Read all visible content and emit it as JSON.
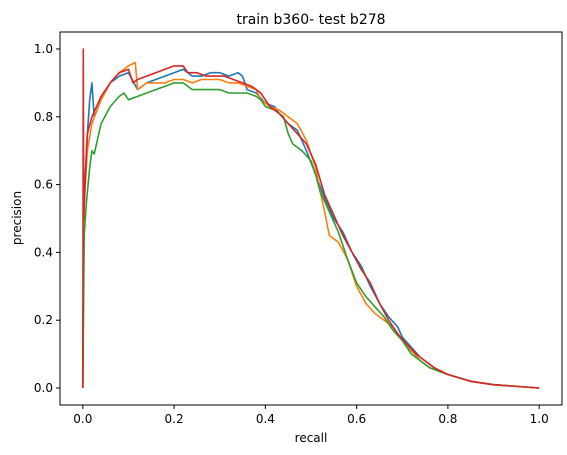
{
  "chart_data": {
    "type": "line",
    "title": "train b360- test b278",
    "xlabel": "recall",
    "ylabel": "precision",
    "xlim": [
      -0.05,
      1.05
    ],
    "ylim": [
      -0.05,
      1.05
    ],
    "x_ticks": [
      0.0,
      0.2,
      0.4,
      0.6,
      0.8,
      1.0
    ],
    "x_tick_labels": [
      "0.0",
      "0.2",
      "0.4",
      "0.6",
      "0.8",
      "1.0"
    ],
    "y_ticks": [
      0.0,
      0.2,
      0.4,
      0.6,
      0.8,
      1.0
    ],
    "y_tick_labels": [
      "0.0",
      "0.2",
      "0.4",
      "0.6",
      "0.8",
      "1.0"
    ],
    "grid": false,
    "legend": "none",
    "series": [
      {
        "color": "#1f77b4",
        "points": [
          [
            0.0,
            0.0
          ],
          [
            0.002,
            0.5
          ],
          [
            0.005,
            0.62
          ],
          [
            0.01,
            0.75
          ],
          [
            0.015,
            0.85
          ],
          [
            0.02,
            0.9
          ],
          [
            0.025,
            0.8
          ],
          [
            0.04,
            0.85
          ],
          [
            0.06,
            0.9
          ],
          [
            0.08,
            0.92
          ],
          [
            0.1,
            0.93
          ],
          [
            0.12,
            0.88
          ],
          [
            0.14,
            0.9
          ],
          [
            0.16,
            0.91
          ],
          [
            0.18,
            0.92
          ],
          [
            0.2,
            0.93
          ],
          [
            0.22,
            0.94
          ],
          [
            0.24,
            0.92
          ],
          [
            0.26,
            0.92
          ],
          [
            0.28,
            0.93
          ],
          [
            0.3,
            0.93
          ],
          [
            0.32,
            0.92
          ],
          [
            0.34,
            0.93
          ],
          [
            0.35,
            0.92
          ],
          [
            0.36,
            0.88
          ],
          [
            0.38,
            0.87
          ],
          [
            0.4,
            0.84
          ],
          [
            0.42,
            0.83
          ],
          [
            0.43,
            0.81
          ],
          [
            0.45,
            0.78
          ],
          [
            0.47,
            0.76
          ],
          [
            0.49,
            0.7
          ],
          [
            0.51,
            0.63
          ],
          [
            0.53,
            0.56
          ],
          [
            0.55,
            0.5
          ],
          [
            0.57,
            0.46
          ],
          [
            0.59,
            0.4
          ],
          [
            0.61,
            0.36
          ],
          [
            0.63,
            0.3
          ],
          [
            0.65,
            0.25
          ],
          [
            0.67,
            0.21
          ],
          [
            0.69,
            0.18
          ],
          [
            0.7,
            0.15
          ],
          [
            0.72,
            0.12
          ],
          [
            0.74,
            0.09
          ],
          [
            0.76,
            0.07
          ],
          [
            0.78,
            0.05
          ],
          [
            0.8,
            0.04
          ],
          [
            0.85,
            0.02
          ],
          [
            0.9,
            0.01
          ],
          [
            1.0,
            0.0
          ]
        ]
      },
      {
        "color": "#ff7f0e",
        "points": [
          [
            0.0,
            0.0
          ],
          [
            0.003,
            0.55
          ],
          [
            0.01,
            0.7
          ],
          [
            0.02,
            0.78
          ],
          [
            0.04,
            0.85
          ],
          [
            0.06,
            0.9
          ],
          [
            0.08,
            0.93
          ],
          [
            0.1,
            0.95
          ],
          [
            0.115,
            0.96
          ],
          [
            0.12,
            0.88
          ],
          [
            0.14,
            0.9
          ],
          [
            0.16,
            0.9
          ],
          [
            0.18,
            0.9
          ],
          [
            0.2,
            0.91
          ],
          [
            0.22,
            0.91
          ],
          [
            0.24,
            0.9
          ],
          [
            0.26,
            0.91
          ],
          [
            0.28,
            0.91
          ],
          [
            0.3,
            0.91
          ],
          [
            0.32,
            0.9
          ],
          [
            0.34,
            0.9
          ],
          [
            0.36,
            0.89
          ],
          [
            0.38,
            0.88
          ],
          [
            0.39,
            0.85
          ],
          [
            0.41,
            0.83
          ],
          [
            0.43,
            0.82
          ],
          [
            0.45,
            0.8
          ],
          [
            0.47,
            0.78
          ],
          [
            0.49,
            0.73
          ],
          [
            0.51,
            0.65
          ],
          [
            0.52,
            0.58
          ],
          [
            0.53,
            0.52
          ],
          [
            0.54,
            0.45
          ],
          [
            0.56,
            0.43
          ],
          [
            0.58,
            0.38
          ],
          [
            0.6,
            0.3
          ],
          [
            0.62,
            0.25
          ],
          [
            0.64,
            0.22
          ],
          [
            0.66,
            0.2
          ],
          [
            0.68,
            0.18
          ],
          [
            0.7,
            0.14
          ],
          [
            0.72,
            0.11
          ],
          [
            0.74,
            0.08
          ],
          [
            0.76,
            0.06
          ],
          [
            0.78,
            0.05
          ],
          [
            0.8,
            0.04
          ],
          [
            0.85,
            0.02
          ],
          [
            0.9,
            0.01
          ],
          [
            1.0,
            0.0
          ]
        ]
      },
      {
        "color": "#2ca02c",
        "points": [
          [
            0.0,
            0.0
          ],
          [
            0.003,
            0.45
          ],
          [
            0.008,
            0.55
          ],
          [
            0.015,
            0.65
          ],
          [
            0.02,
            0.7
          ],
          [
            0.025,
            0.69
          ],
          [
            0.04,
            0.78
          ],
          [
            0.06,
            0.83
          ],
          [
            0.08,
            0.86
          ],
          [
            0.09,
            0.87
          ],
          [
            0.1,
            0.85
          ],
          [
            0.12,
            0.86
          ],
          [
            0.14,
            0.87
          ],
          [
            0.16,
            0.88
          ],
          [
            0.18,
            0.89
          ],
          [
            0.2,
            0.9
          ],
          [
            0.22,
            0.9
          ],
          [
            0.24,
            0.88
          ],
          [
            0.26,
            0.88
          ],
          [
            0.28,
            0.88
          ],
          [
            0.3,
            0.88
          ],
          [
            0.32,
            0.87
          ],
          [
            0.34,
            0.87
          ],
          [
            0.36,
            0.87
          ],
          [
            0.38,
            0.86
          ],
          [
            0.39,
            0.85
          ],
          [
            0.4,
            0.83
          ],
          [
            0.42,
            0.82
          ],
          [
            0.44,
            0.8
          ],
          [
            0.45,
            0.75
          ],
          [
            0.46,
            0.72
          ],
          [
            0.48,
            0.7
          ],
          [
            0.5,
            0.67
          ],
          [
            0.51,
            0.63
          ],
          [
            0.52,
            0.58
          ],
          [
            0.54,
            0.52
          ],
          [
            0.56,
            0.46
          ],
          [
            0.58,
            0.38
          ],
          [
            0.6,
            0.31
          ],
          [
            0.62,
            0.27
          ],
          [
            0.64,
            0.24
          ],
          [
            0.66,
            0.21
          ],
          [
            0.68,
            0.17
          ],
          [
            0.7,
            0.14
          ],
          [
            0.72,
            0.1
          ],
          [
            0.74,
            0.08
          ],
          [
            0.76,
            0.06
          ],
          [
            0.8,
            0.04
          ],
          [
            0.85,
            0.02
          ],
          [
            0.9,
            0.01
          ],
          [
            1.0,
            0.0
          ]
        ]
      },
      {
        "color": "#d62728",
        "points": [
          [
            0.0,
            0.0
          ],
          [
            0.001,
            1.0
          ],
          [
            0.002,
            0.5
          ],
          [
            0.005,
            0.6
          ],
          [
            0.008,
            0.7
          ],
          [
            0.01,
            0.75
          ],
          [
            0.02,
            0.8
          ],
          [
            0.04,
            0.86
          ],
          [
            0.06,
            0.9
          ],
          [
            0.08,
            0.93
          ],
          [
            0.1,
            0.94
          ],
          [
            0.11,
            0.9
          ],
          [
            0.12,
            0.91
          ],
          [
            0.14,
            0.92
          ],
          [
            0.16,
            0.93
          ],
          [
            0.18,
            0.94
          ],
          [
            0.2,
            0.95
          ],
          [
            0.22,
            0.95
          ],
          [
            0.23,
            0.93
          ],
          [
            0.25,
            0.93
          ],
          [
            0.27,
            0.92
          ],
          [
            0.29,
            0.92
          ],
          [
            0.31,
            0.92
          ],
          [
            0.33,
            0.91
          ],
          [
            0.35,
            0.9
          ],
          [
            0.37,
            0.89
          ],
          [
            0.39,
            0.87
          ],
          [
            0.41,
            0.83
          ],
          [
            0.43,
            0.81
          ],
          [
            0.45,
            0.78
          ],
          [
            0.47,
            0.75
          ],
          [
            0.49,
            0.72
          ],
          [
            0.51,
            0.66
          ],
          [
            0.53,
            0.57
          ],
          [
            0.55,
            0.51
          ],
          [
            0.57,
            0.45
          ],
          [
            0.59,
            0.4
          ],
          [
            0.61,
            0.35
          ],
          [
            0.63,
            0.31
          ],
          [
            0.65,
            0.25
          ],
          [
            0.67,
            0.2
          ],
          [
            0.69,
            0.16
          ],
          [
            0.71,
            0.13
          ],
          [
            0.73,
            0.1
          ],
          [
            0.75,
            0.08
          ],
          [
            0.77,
            0.06
          ],
          [
            0.8,
            0.04
          ],
          [
            0.85,
            0.02
          ],
          [
            0.9,
            0.01
          ],
          [
            1.0,
            0.0
          ]
        ]
      }
    ]
  }
}
